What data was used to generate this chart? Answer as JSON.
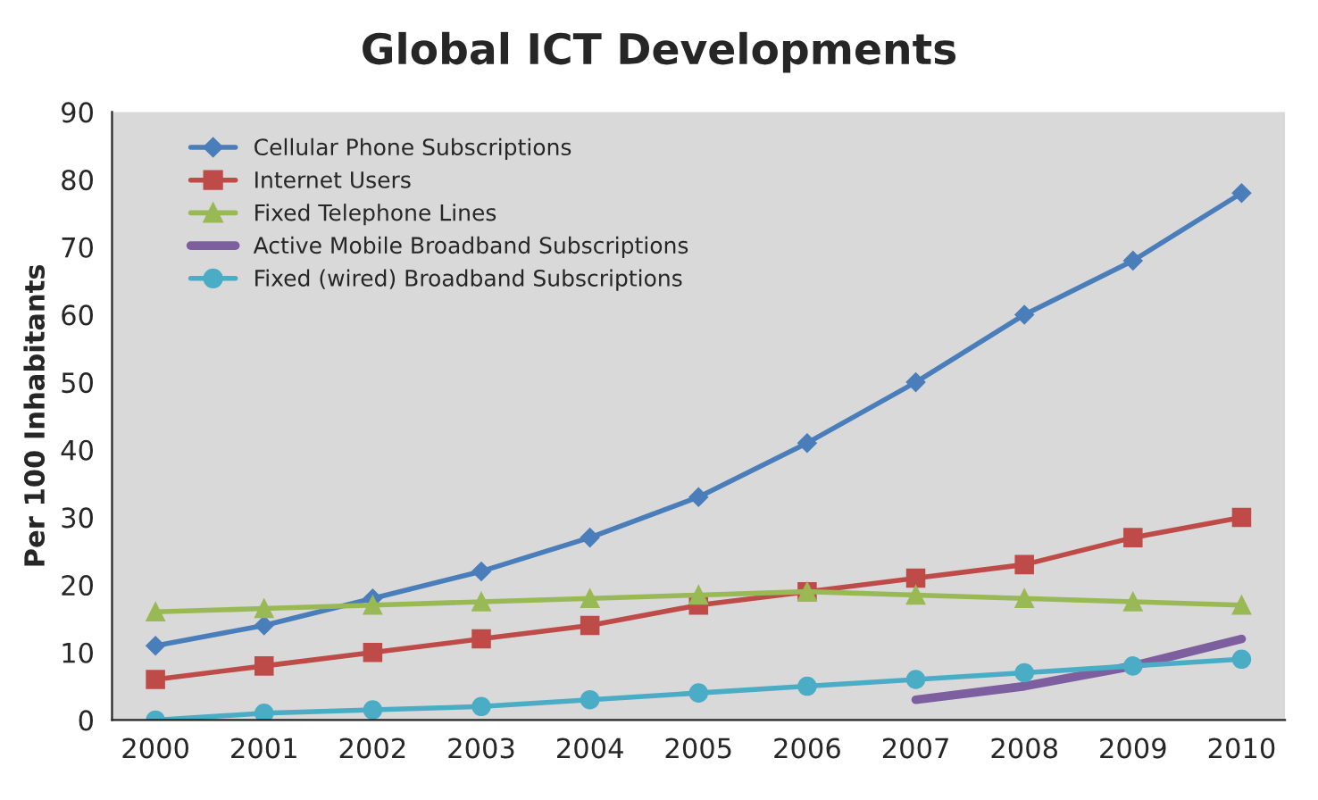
{
  "chart_data": {
    "type": "line",
    "title": "Global ICT Developments",
    "ylabel": "Per 100 Inhabitants",
    "categories": [
      "2000",
      "2001",
      "2002",
      "2003",
      "2004",
      "2005",
      "2006",
      "2007",
      "2008",
      "2009",
      "2010"
    ],
    "ylim": [
      0,
      90
    ],
    "yticks": [
      0,
      10,
      20,
      30,
      40,
      50,
      60,
      70,
      80,
      90
    ],
    "grid": false,
    "legend": "top left",
    "series": [
      {
        "name": "Cellular Phone Subscriptions",
        "color": "#4a7ebb",
        "marker": "diamond",
        "values": [
          11,
          14,
          18,
          22,
          27,
          33,
          41,
          50,
          60,
          68,
          78
        ]
      },
      {
        "name": "Internet Users",
        "color": "#be4b48",
        "marker": "square",
        "values": [
          6,
          8,
          10,
          12,
          14,
          17,
          19,
          21,
          23,
          27,
          30
        ]
      },
      {
        "name": "Fixed Telephone Lines",
        "color": "#98b954",
        "marker": "triangle",
        "values": [
          16,
          16.5,
          17,
          17.5,
          18,
          18.5,
          19,
          18.5,
          18,
          17.5,
          17
        ]
      },
      {
        "name": "Active Mobile Broadband Subscriptions",
        "color": "#7d5fa0",
        "marker": "none",
        "values": [
          null,
          null,
          null,
          null,
          null,
          null,
          null,
          3,
          5,
          8,
          12
        ]
      },
      {
        "name": "Fixed (wired) Broadband Subscriptions",
        "color": "#4bacc6",
        "marker": "circle",
        "values": [
          0,
          1,
          1.5,
          2,
          3,
          4,
          5,
          6,
          7,
          8,
          9
        ]
      }
    ]
  }
}
